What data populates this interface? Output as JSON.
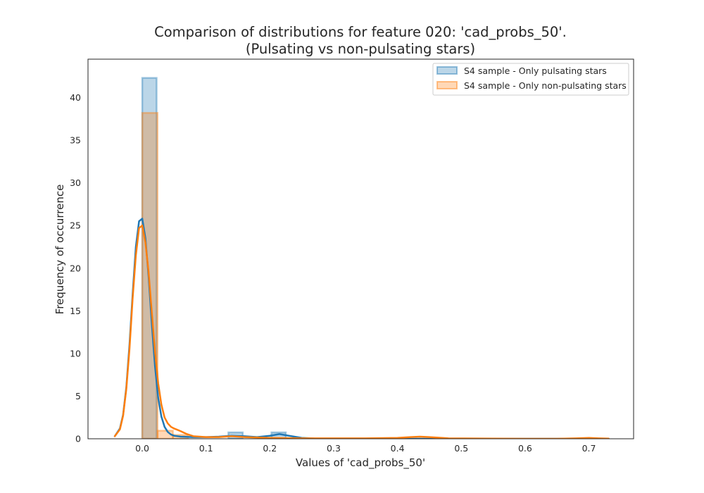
{
  "chart_data": {
    "type": "bar",
    "title_line1": "Comparison of distributions for feature 020: 'cad_probs_50'.",
    "title_line2": "(Pulsating vs non-pulsating stars)",
    "xlabel": "Values of 'cad_probs_50'",
    "ylabel": "Frequency of occurrence",
    "xlim": [
      -0.085,
      0.77
    ],
    "ylim": [
      0,
      44.5
    ],
    "xticks": [
      0.0,
      0.1,
      0.2,
      0.3,
      0.4,
      0.5,
      0.6,
      0.7
    ],
    "xtick_labels": [
      "0.0",
      "0.1",
      "0.2",
      "0.3",
      "0.4",
      "0.5",
      "0.6",
      "0.7"
    ],
    "yticks": [
      0,
      5,
      10,
      15,
      20,
      25,
      30,
      35,
      40
    ],
    "ytick_labels": [
      "0",
      "5",
      "10",
      "15",
      "20",
      "25",
      "30",
      "35",
      "40"
    ],
    "grid": false,
    "legend_position": "upper right",
    "series": [
      {
        "name": "S4 sample - Only pulsating stars",
        "color": "#1f77b4",
        "histogram": [
          {
            "x0": 0.0,
            "x1": 0.0225,
            "y": 42.3
          },
          {
            "x0": 0.135,
            "x1": 0.1575,
            "y": 0.75
          },
          {
            "x0": 0.2025,
            "x1": 0.225,
            "y": 0.75
          }
        ],
        "kde": {
          "x": [
            -0.043,
            -0.035,
            -0.03,
            -0.025,
            -0.02,
            -0.015,
            -0.01,
            -0.005,
            0.0,
            0.005,
            0.01,
            0.015,
            0.02,
            0.025,
            0.03,
            0.035,
            0.04,
            0.045,
            0.05,
            0.06,
            0.08,
            0.1,
            0.12,
            0.14,
            0.16,
            0.18,
            0.2,
            0.215,
            0.23,
            0.25,
            0.27,
            0.3,
            0.35,
            0.4,
            0.45,
            0.5,
            0.6,
            0.7,
            0.731
          ],
          "y": [
            0.3,
            1.2,
            2.8,
            6.0,
            11.0,
            17.0,
            22.5,
            25.5,
            25.8,
            23.5,
            19.0,
            13.5,
            8.5,
            4.8,
            2.6,
            1.4,
            0.8,
            0.5,
            0.35,
            0.25,
            0.2,
            0.2,
            0.25,
            0.35,
            0.3,
            0.2,
            0.35,
            0.55,
            0.35,
            0.1,
            0.03,
            0.0,
            0.0,
            0.0,
            0.0,
            0.0,
            0.0,
            0.0,
            0.0
          ]
        }
      },
      {
        "name": "S4 sample - Only non-pulsating stars",
        "color": "#ff7f0e",
        "histogram": [
          {
            "x0": 0.0,
            "x1": 0.024,
            "y": 38.2
          },
          {
            "x0": 0.024,
            "x1": 0.048,
            "y": 0.95
          },
          {
            "x0": 0.048,
            "x1": 0.072,
            "y": 0.45
          }
        ],
        "kde": {
          "x": [
            -0.043,
            -0.035,
            -0.03,
            -0.025,
            -0.02,
            -0.015,
            -0.01,
            -0.005,
            0.0,
            0.005,
            0.01,
            0.015,
            0.02,
            0.025,
            0.03,
            0.035,
            0.04,
            0.045,
            0.05,
            0.06,
            0.07,
            0.08,
            0.1,
            0.12,
            0.14,
            0.16,
            0.2,
            0.25,
            0.3,
            0.35,
            0.4,
            0.42,
            0.435,
            0.45,
            0.48,
            0.55,
            0.6,
            0.65,
            0.68,
            0.7,
            0.715,
            0.731
          ],
          "y": [
            0.3,
            1.1,
            2.7,
            5.8,
            10.5,
            16.5,
            21.5,
            24.7,
            25.0,
            23.0,
            19.5,
            14.8,
            10.2,
            6.5,
            4.0,
            2.5,
            1.8,
            1.4,
            1.2,
            0.9,
            0.55,
            0.3,
            0.2,
            0.2,
            0.3,
            0.2,
            0.1,
            0.05,
            0.05,
            0.05,
            0.1,
            0.2,
            0.25,
            0.2,
            0.05,
            0.02,
            0.0,
            0.0,
            0.05,
            0.1,
            0.05,
            0.02
          ]
        }
      }
    ]
  }
}
